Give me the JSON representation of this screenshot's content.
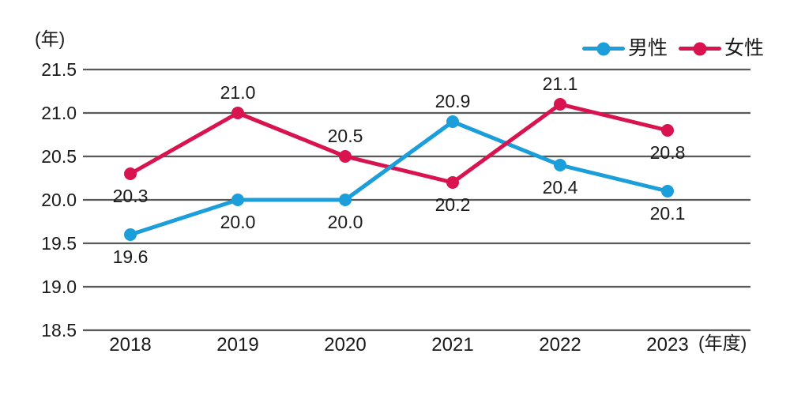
{
  "chart_data": {
    "type": "line",
    "title": "",
    "y_unit_label": "(年)",
    "x_unit_label": "(年度)",
    "categories": [
      "2018",
      "2019",
      "2020",
      "2021",
      "2022",
      "2023"
    ],
    "series": [
      {
        "name": "男性",
        "color": "#1b9ed9",
        "values": [
          19.6,
          20.0,
          20.0,
          20.9,
          20.4,
          20.1
        ],
        "label_positions": [
          "below",
          "below",
          "below",
          "above",
          "below",
          "below"
        ]
      },
      {
        "name": "女性",
        "color": "#d8134f",
        "values": [
          20.3,
          21.0,
          20.5,
          20.2,
          21.1,
          20.8
        ],
        "label_positions": [
          "below",
          "above",
          "above",
          "below",
          "above",
          "below"
        ]
      }
    ],
    "yticks": [
      18.5,
      19.0,
      19.5,
      20.0,
      20.5,
      21.0,
      21.5
    ],
    "ylim": [
      18.5,
      21.75
    ],
    "xlabel": "",
    "ylabel": "",
    "grid": true,
    "legend_position": "top-right",
    "colors": {
      "grid": "#595959",
      "text": "#1a1a1a",
      "background": "#ffffff"
    }
  }
}
